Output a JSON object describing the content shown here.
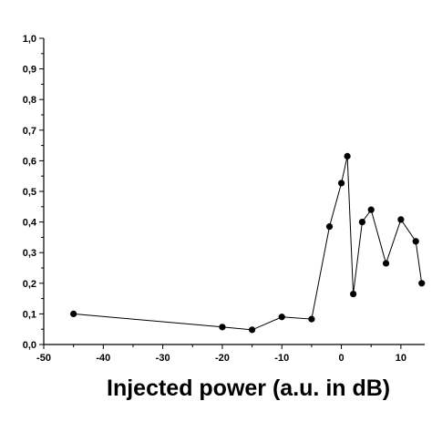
{
  "chart_data": {
    "type": "line",
    "title": "",
    "xlabel": "Injected power (a.u. in dB)",
    "ylabel": "",
    "xlim": [
      -50,
      14
    ],
    "ylim": [
      0.0,
      1.0
    ],
    "x_ticks": [
      -50,
      -40,
      -30,
      -20,
      -10,
      0,
      10
    ],
    "x_tick_labels": [
      "-50",
      "-40",
      "-30",
      "-20",
      "-10",
      "0",
      "10"
    ],
    "y_ticks": [
      0.0,
      0.1,
      0.2,
      0.3,
      0.4,
      0.5,
      0.6,
      0.7,
      0.8,
      0.9,
      1.0
    ],
    "y_tick_labels": [
      "0,0",
      "0,1",
      "0,2",
      "0,3",
      "0,4",
      "0,5",
      "0,6",
      "0,7",
      "0,8",
      "0,9",
      "1,0"
    ],
    "grid": false,
    "legend": "none",
    "marker": "filled-circle",
    "series": [
      {
        "x": [
          -45,
          -20,
          -15,
          -10,
          -5,
          -2,
          0,
          1,
          2,
          3.5,
          5,
          7.5,
          10,
          12.5,
          13.5
        ],
        "y": [
          0.1,
          0.057,
          0.048,
          0.09,
          0.083,
          0.385,
          0.527,
          0.615,
          0.165,
          0.4,
          0.44,
          0.265,
          0.408,
          0.337,
          0.2
        ]
      }
    ]
  }
}
